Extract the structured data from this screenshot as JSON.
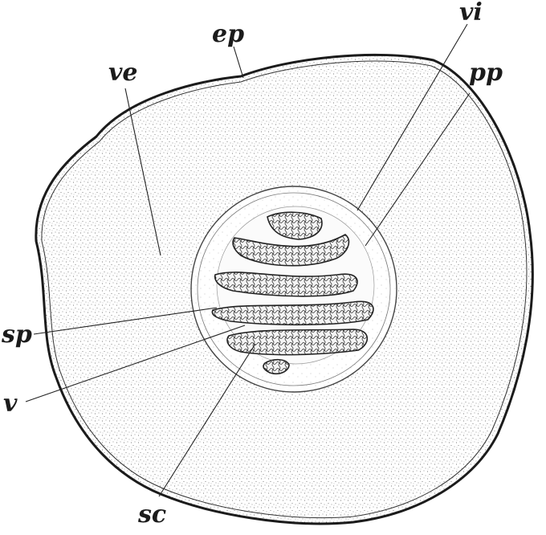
{
  "diagram": {
    "labels": {
      "ep": "ep",
      "ve": "ve",
      "vi": "vi",
      "pp": "pp",
      "sp": "sp",
      "v": "v",
      "sc": "sc"
    },
    "colors": {
      "ink": "#1b1b1b",
      "paper": "#ffffff",
      "stipple": "#555555"
    }
  }
}
